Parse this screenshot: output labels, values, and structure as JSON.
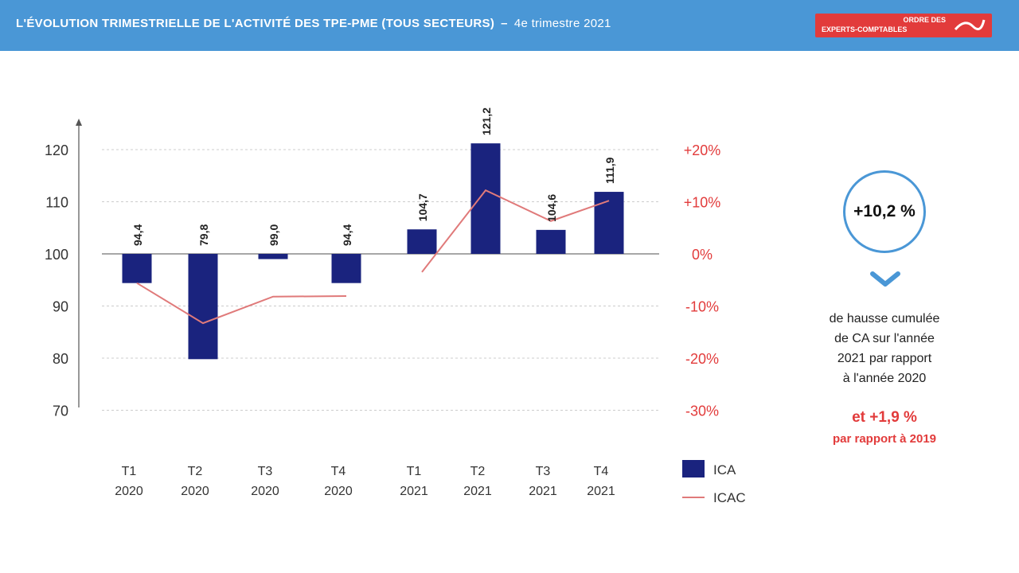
{
  "header": {
    "title": "L'ÉVOLUTION TRIMESTRIELLE DE L'ACTIVITÉ DES TPE-PME (TOUS SECTEURS)",
    "separator": "–",
    "subtitle": "4e trimestre 2021",
    "logo_line1": "ORDRE DES",
    "logo_line2": "EXPERTS-COMPTABLES"
  },
  "colors": {
    "header_bg": "#4a97d6",
    "bar": "#1a237e",
    "line": "#e07a7a",
    "accent_red": "#e23b3b",
    "circle": "#4a97d6"
  },
  "chart_data": {
    "type": "bar",
    "categories": [
      [
        "T1",
        "2020"
      ],
      [
        "T2",
        "2020"
      ],
      [
        "T3",
        "2020"
      ],
      [
        "T4",
        "2020"
      ],
      [
        "T1",
        "2021"
      ],
      [
        "T2",
        "2021"
      ],
      [
        "T3",
        "2021"
      ],
      [
        "T4",
        "2021"
      ]
    ],
    "series": [
      {
        "name": "ICA",
        "type": "bar",
        "axis": "left",
        "values": [
          94.4,
          79.8,
          99.0,
          94.4,
          104.7,
          121.2,
          104.6,
          111.9
        ]
      },
      {
        "name": "ICAC",
        "type": "line",
        "axis": "right",
        "values": [
          -5.6,
          -13.3,
          -8.2,
          -8.1,
          -3.5,
          12.2,
          6.3,
          10.2
        ]
      }
    ],
    "bar_labels": [
      "94,4",
      "79,8",
      "99,0",
      "94,4",
      "104,7",
      "121,2",
      "104,6",
      "111,9"
    ],
    "y_left": {
      "ticks": [
        70,
        80,
        90,
        100,
        110,
        120
      ],
      "ylim": [
        70,
        125
      ],
      "baseline": 100
    },
    "y_right": {
      "tick_values": [
        -30,
        -20,
        -10,
        0,
        10,
        20
      ],
      "tick_labels": [
        "-30%",
        "-20%",
        "-10%",
        "0%",
        "+10%",
        "+20%"
      ]
    },
    "grid": "horizontal-dashed",
    "legend": {
      "placement": "bottom-right",
      "entries": [
        "ICA",
        "ICAC"
      ]
    }
  },
  "kpi": {
    "value": "+10,2 %",
    "description": [
      "de hausse cumulée",
      "de CA sur l'année",
      "2021 par rapport",
      "à l'année 2020"
    ],
    "secondary_prefix": "et",
    "secondary_value": "+1,9 %",
    "secondary_text": "par rapport à 2019"
  }
}
